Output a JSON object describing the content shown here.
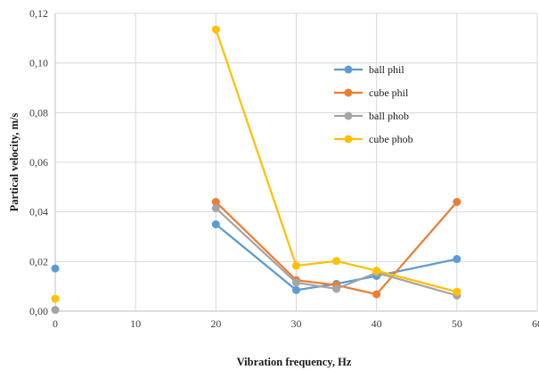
{
  "chart_data": {
    "type": "line",
    "xlabel": "Vibration frequency, Hz",
    "ylabel": "Partical velocity, m/s",
    "xlim": [
      0,
      60
    ],
    "ylim": [
      0,
      0.12
    ],
    "xticks": [
      0,
      10,
      20,
      30,
      40,
      50,
      60
    ],
    "yticks": [
      0,
      0.02,
      0.04,
      0.06,
      0.08,
      0.1,
      0.12
    ],
    "xtick_labels": [
      "0",
      "10",
      "20",
      "30",
      "40",
      "50",
      "60"
    ],
    "ytick_labels": [
      "0,00",
      "0,02",
      "0,04",
      "0,06",
      "0,08",
      "0,10",
      "0,12"
    ],
    "grid": true,
    "legend_position": "right-inside",
    "series": [
      {
        "name": "ball phil",
        "color": "#5b9bd5",
        "isolated_points": [
          {
            "x": 0,
            "y": 0.0172
          }
        ],
        "points": [
          {
            "x": 20,
            "y": 0.035
          },
          {
            "x": 30,
            "y": 0.0085
          },
          {
            "x": 35,
            "y": 0.011
          },
          {
            "x": 40,
            "y": 0.0142
          },
          {
            "x": 50,
            "y": 0.021
          }
        ]
      },
      {
        "name": "cube phil",
        "color": "#ed7d31",
        "isolated_points": [],
        "points": [
          {
            "x": 20,
            "y": 0.044
          },
          {
            "x": 30,
            "y": 0.0125
          },
          {
            "x": 35,
            "y": 0.0105
          },
          {
            "x": 40,
            "y": 0.0068
          },
          {
            "x": 50,
            "y": 0.044
          }
        ]
      },
      {
        "name": "ball phob",
        "color": "#a5a5a5",
        "isolated_points": [
          {
            "x": 0,
            "y": 0.0005
          }
        ],
        "points": [
          {
            "x": 20,
            "y": 0.0415
          },
          {
            "x": 30,
            "y": 0.0115
          },
          {
            "x": 35,
            "y": 0.009
          },
          {
            "x": 40,
            "y": 0.0155
          },
          {
            "x": 50,
            "y": 0.0063
          }
        ]
      },
      {
        "name": "cube phob",
        "color": "#ffc000",
        "isolated_points": [
          {
            "x": 0,
            "y": 0.005
          }
        ],
        "points": [
          {
            "x": 20,
            "y": 0.1135
          },
          {
            "x": 30,
            "y": 0.0183
          },
          {
            "x": 35,
            "y": 0.0202
          },
          {
            "x": 40,
            "y": 0.0163
          },
          {
            "x": 50,
            "y": 0.0078
          }
        ]
      }
    ]
  }
}
